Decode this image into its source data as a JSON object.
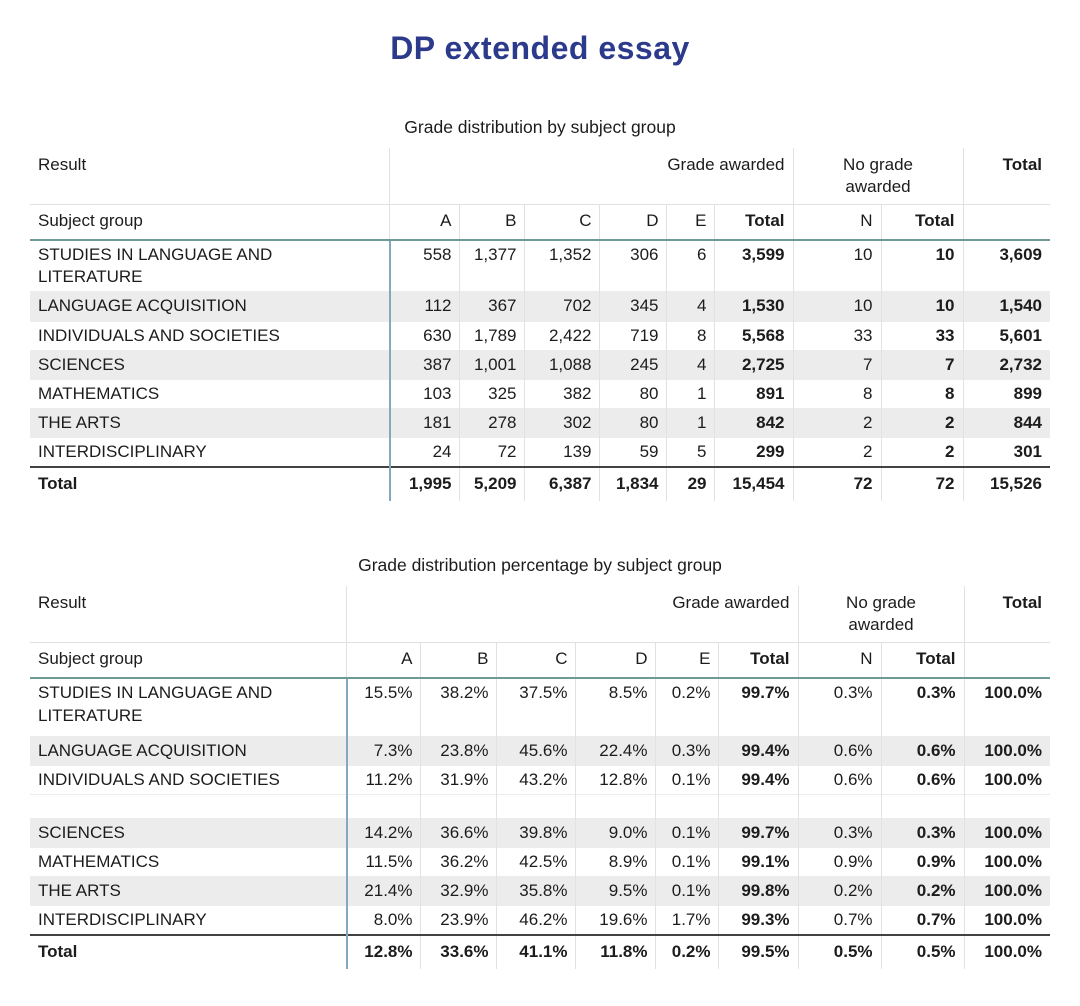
{
  "page_title": "DP extended essay",
  "colors": {
    "title_navy": "#2c3a8c",
    "header_rule_teal": "#6e9b97",
    "subject_divider_blue": "#85a8bf",
    "row_shade_gray": "#ececec",
    "total_rule_dark": "#424242"
  },
  "tables": [
    {
      "title": "Grade distribution by subject group",
      "corner_label": "Result",
      "subject_label": "Subject group",
      "group1_label": "Grade awarded",
      "group2_label": "No grade awarded",
      "overall_label": "Total",
      "columns": [
        "A",
        "B",
        "C",
        "D",
        "E",
        "Total",
        "N",
        "Total"
      ],
      "rows": [
        {
          "subject": "STUDIES IN LANGUAGE AND LITERATURE",
          "values": [
            "558",
            "1,377",
            "1,352",
            "306",
            "6",
            "3,599",
            "10",
            "10",
            "3,609"
          ],
          "shaded": false
        },
        {
          "subject": "LANGUAGE ACQUISITION",
          "values": [
            "112",
            "367",
            "702",
            "345",
            "4",
            "1,530",
            "10",
            "10",
            "1,540"
          ],
          "shaded": true
        },
        {
          "subject": "INDIVIDUALS AND SOCIETIES",
          "values": [
            "630",
            "1,789",
            "2,422",
            "719",
            "8",
            "5,568",
            "33",
            "33",
            "5,601"
          ],
          "shaded": false
        },
        {
          "subject": "SCIENCES",
          "values": [
            "387",
            "1,001",
            "1,088",
            "245",
            "4",
            "2,725",
            "7",
            "7",
            "2,732"
          ],
          "shaded": true
        },
        {
          "subject": "MATHEMATICS",
          "values": [
            "103",
            "325",
            "382",
            "80",
            "1",
            "891",
            "8",
            "8",
            "899"
          ],
          "shaded": false
        },
        {
          "subject": "THE ARTS",
          "values": [
            "181",
            "278",
            "302",
            "80",
            "1",
            "842",
            "2",
            "2",
            "844"
          ],
          "shaded": true
        },
        {
          "subject": "INTERDISCIPLINARY",
          "values": [
            "24",
            "72",
            "139",
            "59",
            "5",
            "299",
            "2",
            "2",
            "301"
          ],
          "shaded": false
        },
        {
          "subject": "Total",
          "values": [
            "1,995",
            "5,209",
            "6,387",
            "1,834",
            "29",
            "15,454",
            "72",
            "72",
            "15,526"
          ],
          "shaded": false,
          "total": true
        }
      ]
    },
    {
      "title": "Grade distribution percentage by subject group",
      "corner_label": "Result",
      "subject_label": "Subject group",
      "group1_label": "Grade awarded",
      "group2_label": "No grade awarded",
      "overall_label": "Total",
      "columns": [
        "A",
        "B",
        "C",
        "D",
        "E",
        "Total",
        "N",
        "Total"
      ],
      "rows": [
        {
          "subject": "STUDIES IN LANGUAGE AND LITERATURE",
          "values": [
            "15.5%",
            "38.2%",
            "37.5%",
            "8.5%",
            "0.2%",
            "99.7%",
            "0.3%",
            "0.3%",
            "100.0%"
          ],
          "shaded": false,
          "tall": true
        },
        {
          "subject": "LANGUAGE ACQUISITION",
          "values": [
            "7.3%",
            "23.8%",
            "45.6%",
            "22.4%",
            "0.3%",
            "99.4%",
            "0.6%",
            "0.6%",
            "100.0%"
          ],
          "shaded": true
        },
        {
          "subject": "INDIVIDUALS AND SOCIETIES",
          "values": [
            "11.2%",
            "31.9%",
            "43.2%",
            "12.8%",
            "0.1%",
            "99.4%",
            "0.6%",
            "0.6%",
            "100.0%"
          ],
          "shaded": false
        },
        {
          "subject": "",
          "values": [
            "",
            "",
            "",
            "",
            "",
            "",
            "",
            "",
            ""
          ],
          "shaded": false,
          "empty": true
        },
        {
          "subject": "SCIENCES",
          "values": [
            "14.2%",
            "36.6%",
            "39.8%",
            "9.0%",
            "0.1%",
            "99.7%",
            "0.3%",
            "0.3%",
            "100.0%"
          ],
          "shaded": true
        },
        {
          "subject": "MATHEMATICS",
          "values": [
            "11.5%",
            "36.2%",
            "42.5%",
            "8.9%",
            "0.1%",
            "99.1%",
            "0.9%",
            "0.9%",
            "100.0%"
          ],
          "shaded": false
        },
        {
          "subject": "THE ARTS",
          "values": [
            "21.4%",
            "32.9%",
            "35.8%",
            "9.5%",
            "0.1%",
            "99.8%",
            "0.2%",
            "0.2%",
            "100.0%"
          ],
          "shaded": true
        },
        {
          "subject": "INTERDISCIPLINARY",
          "values": [
            "8.0%",
            "23.9%",
            "46.2%",
            "19.6%",
            "1.7%",
            "99.3%",
            "0.7%",
            "0.7%",
            "100.0%"
          ],
          "shaded": false
        },
        {
          "subject": "Total",
          "values": [
            "12.8%",
            "33.6%",
            "41.1%",
            "11.8%",
            "0.2%",
            "99.5%",
            "0.5%",
            "0.5%",
            "100.0%"
          ],
          "shaded": false,
          "total": true
        }
      ]
    }
  ]
}
